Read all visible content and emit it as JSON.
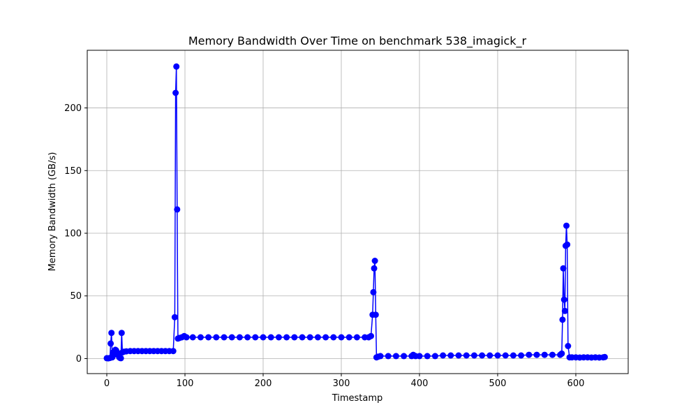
{
  "chart_data": {
    "type": "line",
    "title": "Memory Bandwidth Over Time on benchmark 538_imagick_r",
    "xlabel": "Timestamp",
    "ylabel": "Memory Bandwidth (GB/s)",
    "xlim": [
      -25,
      667
    ],
    "ylim": [
      -12,
      246
    ],
    "xticks": [
      0,
      100,
      200,
      300,
      400,
      500,
      600
    ],
    "yticks": [
      0,
      50,
      100,
      150,
      200
    ],
    "grid": true,
    "series": [
      {
        "color": "#0000ff",
        "marker": "circle",
        "points": [
          [
            0,
            0.3
          ],
          [
            2,
            0.2
          ],
          [
            4,
            0.5
          ],
          [
            5,
            12
          ],
          [
            6,
            20.5
          ],
          [
            7,
            1
          ],
          [
            8,
            5
          ],
          [
            9,
            3
          ],
          [
            10,
            6
          ],
          [
            11,
            7
          ],
          [
            12,
            6.5
          ],
          [
            13,
            5
          ],
          [
            14,
            3
          ],
          [
            15,
            4
          ],
          [
            16,
            1
          ],
          [
            17,
            0.5
          ],
          [
            18,
            0.3
          ],
          [
            19,
            20.5
          ],
          [
            20,
            5
          ],
          [
            22,
            5.5
          ],
          [
            25,
            5.8
          ],
          [
            30,
            6
          ],
          [
            35,
            6
          ],
          [
            40,
            6
          ],
          [
            45,
            6
          ],
          [
            50,
            6
          ],
          [
            55,
            6
          ],
          [
            60,
            6
          ],
          [
            65,
            6
          ],
          [
            70,
            6
          ],
          [
            75,
            6
          ],
          [
            80,
            6
          ],
          [
            85,
            6
          ],
          [
            87,
            33
          ],
          [
            88,
            212
          ],
          [
            89,
            233
          ],
          [
            90,
            119
          ],
          [
            91,
            16
          ],
          [
            93,
            16.5
          ],
          [
            96,
            17
          ],
          [
            99,
            18
          ],
          [
            102,
            17
          ],
          [
            110,
            17
          ],
          [
            120,
            17
          ],
          [
            130,
            17
          ],
          [
            140,
            17
          ],
          [
            150,
            17
          ],
          [
            160,
            17
          ],
          [
            170,
            17
          ],
          [
            180,
            17
          ],
          [
            190,
            17
          ],
          [
            200,
            17
          ],
          [
            210,
            17
          ],
          [
            220,
            17
          ],
          [
            230,
            17
          ],
          [
            240,
            17
          ],
          [
            250,
            17
          ],
          [
            260,
            17
          ],
          [
            270,
            17
          ],
          [
            280,
            17
          ],
          [
            290,
            17
          ],
          [
            300,
            17
          ],
          [
            310,
            17
          ],
          [
            320,
            17
          ],
          [
            330,
            17
          ],
          [
            335,
            17
          ],
          [
            338,
            18
          ],
          [
            340,
            35
          ],
          [
            341,
            53
          ],
          [
            342,
            72
          ],
          [
            343,
            78
          ],
          [
            344,
            35
          ],
          [
            345,
            1
          ],
          [
            347,
            1.5
          ],
          [
            350,
            2
          ],
          [
            360,
            2
          ],
          [
            370,
            2
          ],
          [
            380,
            2
          ],
          [
            390,
            2
          ],
          [
            392,
            3
          ],
          [
            395,
            2
          ],
          [
            400,
            2
          ],
          [
            410,
            2
          ],
          [
            420,
            2
          ],
          [
            430,
            2.5
          ],
          [
            440,
            2.5
          ],
          [
            450,
            2.5
          ],
          [
            460,
            2.5
          ],
          [
            470,
            2.5
          ],
          [
            480,
            2.5
          ],
          [
            490,
            2.5
          ],
          [
            500,
            2.5
          ],
          [
            510,
            2.5
          ],
          [
            520,
            2.5
          ],
          [
            530,
            2.5
          ],
          [
            540,
            3
          ],
          [
            550,
            3
          ],
          [
            560,
            3
          ],
          [
            570,
            3
          ],
          [
            580,
            3
          ],
          [
            582,
            4
          ],
          [
            583,
            31
          ],
          [
            584,
            72
          ],
          [
            585,
            47
          ],
          [
            586,
            38
          ],
          [
            587,
            90
          ],
          [
            588,
            106
          ],
          [
            589,
            91
          ],
          [
            590,
            10
          ],
          [
            592,
            1
          ],
          [
            595,
            1
          ],
          [
            600,
            1
          ],
          [
            605,
            0.8
          ],
          [
            610,
            1
          ],
          [
            615,
            1
          ],
          [
            620,
            0.8
          ],
          [
            625,
            1
          ],
          [
            630,
            0.8
          ],
          [
            635,
            1
          ],
          [
            637,
            1.2
          ]
        ]
      }
    ]
  }
}
